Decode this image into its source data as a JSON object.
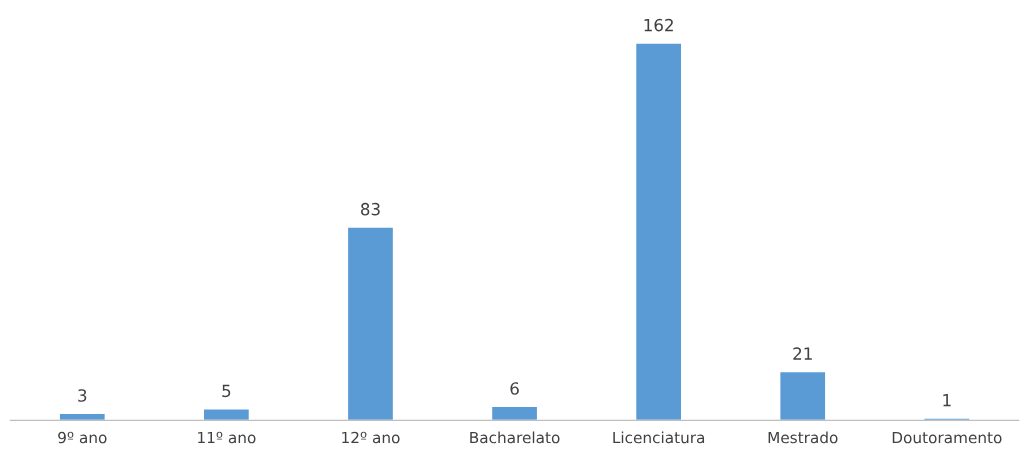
{
  "chart_data": {
    "type": "bar",
    "categories": [
      "9º ano",
      "11º ano",
      "12º ano",
      "Bacharelato",
      "Licenciatura",
      "Mestrado",
      "Doutoramento"
    ],
    "values": [
      3,
      5,
      83,
      6,
      162,
      21,
      1
    ],
    "color": "#5b9bd5",
    "data_labels": true,
    "grid": false,
    "legend": false
  }
}
